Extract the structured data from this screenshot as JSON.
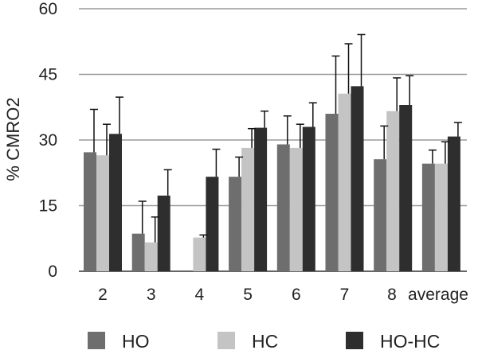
{
  "chart_data": {
    "type": "bar",
    "ylabel": "% CMRO2",
    "ylim": [
      0,
      60
    ],
    "yticks": [
      0,
      15,
      30,
      45,
      60
    ],
    "grid": true,
    "legend_position": "bottom",
    "categories": [
      "2",
      "3",
      "4",
      "5",
      "6",
      "7",
      "8",
      "average"
    ],
    "series": [
      {
        "name": "HO",
        "color": "#6e6e6e",
        "values": [
          27.2,
          8.6,
          null,
          21.6,
          29.0,
          36.0,
          25.6,
          24.6
        ],
        "errors": [
          9.8,
          7.4,
          null,
          4.5,
          6.5,
          13.2,
          7.6,
          3.1
        ]
      },
      {
        "name": "HC",
        "color": "#c4c4c4",
        "values": [
          26.5,
          6.6,
          7.7,
          28.2,
          28.2,
          40.6,
          36.6,
          24.6
        ],
        "errors": [
          7.1,
          5.8,
          0.6,
          4.4,
          5.4,
          11.4,
          7.6,
          5.0
        ]
      },
      {
        "name": "HO-HC",
        "color": "#2e2e2e",
        "values": [
          31.4,
          17.3,
          21.6,
          32.8,
          33.0,
          42.3,
          38.0,
          30.8
        ],
        "errors": [
          8.4,
          5.9,
          6.3,
          3.8,
          5.5,
          11.8,
          6.7,
          3.2
        ]
      }
    ]
  }
}
